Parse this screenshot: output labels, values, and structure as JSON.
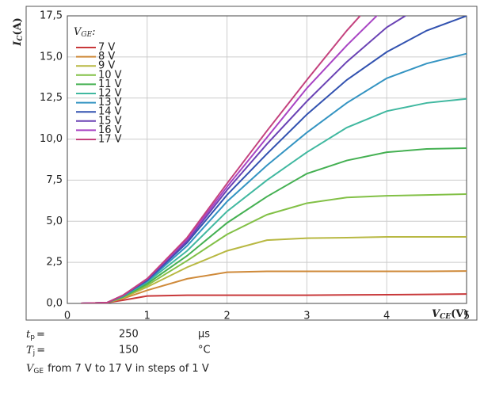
{
  "chart_data": {
    "type": "line",
    "ylabel": {
      "main": "I",
      "sub": "C",
      "unit": "(A)"
    },
    "xlabel": {
      "main": "V",
      "sub": "CE",
      "unit": "(V)"
    },
    "legend_title": {
      "main": "V",
      "sub": "GE",
      "suffix": ":"
    },
    "x": [
      0.17,
      0.5,
      0.7,
      1,
      1.5,
      2,
      2.5,
      3,
      3.5,
      4,
      4.5,
      5
    ],
    "xlim": [
      0,
      5
    ],
    "xticks": [
      0,
      1,
      2,
      3,
      4,
      5
    ],
    "ylim": [
      0,
      17.5
    ],
    "yticks": [
      {
        "value": 0,
        "label": "0,0"
      },
      {
        "value": 2.5,
        "label": "2,5"
      },
      {
        "value": 5,
        "label": "5,0"
      },
      {
        "value": 7.5,
        "label": "7,5"
      },
      {
        "value": 10,
        "label": "10,0"
      },
      {
        "value": 12.5,
        "label": "12,5"
      },
      {
        "value": 15,
        "label": "15,0"
      },
      {
        "value": 17.5,
        "label": "17,5"
      }
    ],
    "grid": true,
    "legend": "upper left",
    "series": [
      {
        "name": "7 V",
        "color": "#c8383a",
        "values": [
          0,
          0.05,
          0.2,
          0.45,
          0.5,
          0.5,
          0.5,
          0.5,
          0.52,
          0.53,
          0.55,
          0.57
        ]
      },
      {
        "name": "8 V",
        "color": "#cf8a3a",
        "values": [
          0,
          0.05,
          0.3,
          0.8,
          1.5,
          1.9,
          1.95,
          1.95,
          1.95,
          1.95,
          1.95,
          1.97
        ]
      },
      {
        "name": "9 V",
        "color": "#b8b842",
        "values": [
          0,
          0.05,
          0.35,
          1.0,
          2.2,
          3.2,
          3.85,
          3.97,
          4.0,
          4.05,
          4.05,
          4.05
        ]
      },
      {
        "name": "10 V",
        "color": "#82c046",
        "values": [
          0,
          0.05,
          0.4,
          1.1,
          2.6,
          4.2,
          5.4,
          6.1,
          6.45,
          6.55,
          6.6,
          6.65
        ]
      },
      {
        "name": "11 V",
        "color": "#44b052",
        "values": [
          0,
          0.05,
          0.4,
          1.2,
          2.9,
          4.9,
          6.5,
          7.9,
          8.7,
          9.2,
          9.4,
          9.45
        ]
      },
      {
        "name": "12 V",
        "color": "#40b8a0",
        "values": [
          0,
          0.05,
          0.45,
          1.3,
          3.2,
          5.6,
          7.5,
          9.2,
          10.7,
          11.7,
          12.2,
          12.45
        ]
      },
      {
        "name": "13 V",
        "color": "#3494c2",
        "values": [
          0,
          0.05,
          0.45,
          1.35,
          3.5,
          6.2,
          8.4,
          10.4,
          12.2,
          13.7,
          14.6,
          15.2
        ]
      },
      {
        "name": "14 V",
        "color": "#3252b0",
        "values": [
          0,
          0.05,
          0.5,
          1.4,
          3.7,
          6.6,
          9.1,
          11.5,
          13.6,
          15.3,
          16.6,
          17.5
        ]
      },
      {
        "name": "15 V",
        "color": "#6a42b4",
        "values": [
          0,
          0.05,
          0.5,
          1.45,
          3.8,
          6.9,
          9.7,
          12.3,
          14.7,
          16.8,
          18.3,
          null
        ]
      },
      {
        "name": "16 V",
        "color": "#a844c4",
        "values": [
          0,
          0.05,
          0.5,
          1.5,
          3.9,
          7.1,
          10.1,
          13.1,
          15.7,
          18.1,
          null,
          null
        ]
      },
      {
        "name": "17 V",
        "color": "#c4427e",
        "values": [
          0,
          0.05,
          0.5,
          1.5,
          4.0,
          7.3,
          10.5,
          13.6,
          16.6,
          19.3,
          null,
          null
        ]
      }
    ]
  },
  "notes": [
    {
      "symbol": "t",
      "sub": "p",
      "eq": "=",
      "value": "250",
      "unit": "µs"
    },
    {
      "symbol": "T",
      "sub": "j",
      "eq": "=",
      "value": "150",
      "unit": "°C"
    }
  ],
  "condition": {
    "symbol": "V",
    "sub": "GE",
    "text": "from 7 V to 17 V in steps of 1 V"
  }
}
